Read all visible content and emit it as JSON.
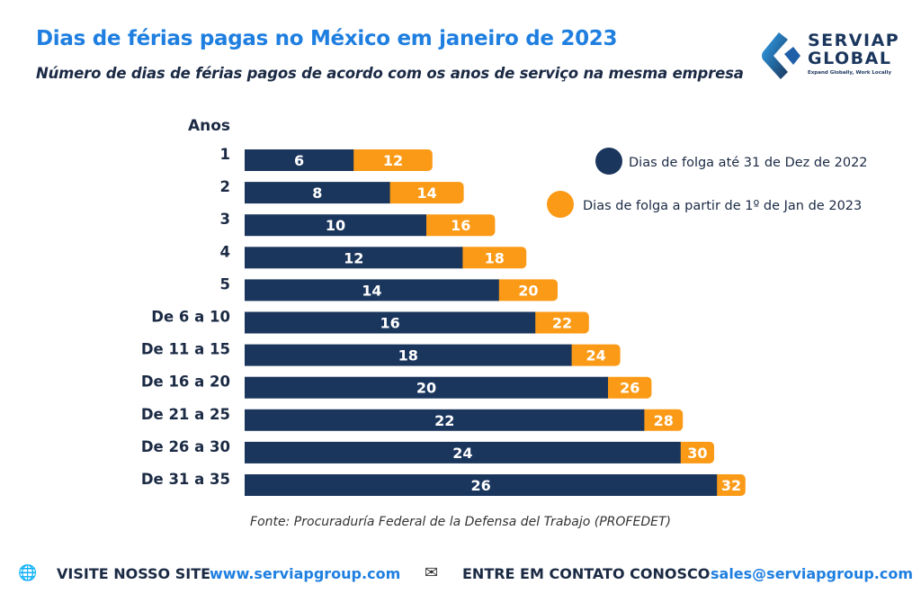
{
  "header": {
    "title": "Dias de férias pagas no México em janeiro de 2023",
    "subtitle": "Número de dias de férias pagos de acordo com os anos de serviço na mesma empresa"
  },
  "logo": {
    "line1": "SERVIAP",
    "line2": "GLOBAL",
    "tagline": "Expand Globally, Work Locally"
  },
  "chart_data": {
    "type": "bar",
    "orientation": "horizontal",
    "category_header": "Anos",
    "categories": [
      "1",
      "2",
      "3",
      "4",
      "5",
      "De 6 a 10",
      "De 11 a 15",
      "De 16 a 20",
      "De 21 a 25",
      "De 26 a 30",
      "De 31 a 35"
    ],
    "series": [
      {
        "name": "Dias de folga até 31 de Dez de 2022",
        "color": "#1b365d",
        "values": [
          6,
          8,
          10,
          12,
          14,
          16,
          18,
          20,
          22,
          24,
          26
        ]
      },
      {
        "name": "Dias de folga a partir de 1º de Jan de 2023",
        "color": "#fb9a16",
        "values": [
          12,
          14,
          16,
          18,
          20,
          22,
          24,
          26,
          28,
          30,
          32
        ]
      }
    ],
    "legend": "top-right",
    "grid": false,
    "data_labels": true
  },
  "source": "Fonte: Procuraduría Federal de la Defensa del Trabajo (PROFEDET)",
  "footer": {
    "visit_label": "VISITE NOSSO SITE",
    "site": "www.serviapgroup.com",
    "contact_label": "ENTRE EM CONTATO CONOSCO",
    "email": "sales@serviapgroup.com",
    "globe_icon": "globe-icon",
    "mail_icon": "mail-icon"
  }
}
